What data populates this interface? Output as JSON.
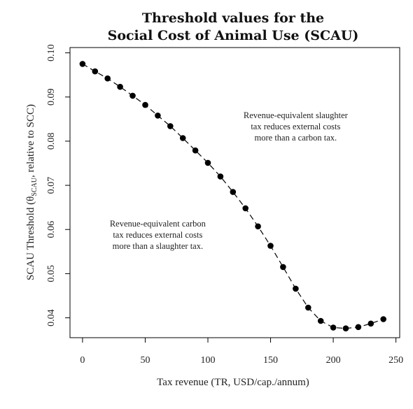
{
  "chart_data": {
    "type": "scatter",
    "title_line1": "Threshold values for the",
    "title_line2": "Social Cost of Animal Use (SCAU)",
    "xlabel": "Tax revenue (TR, USD/cap./annum)",
    "ylabel_prefix": "SCAU Threshold (θ",
    "ylabel_subscript": "SCAU",
    "ylabel_suffix": ", relative to SCC)",
    "xlim": [
      -10,
      253
    ],
    "ylim": [
      0.0355,
      0.1012
    ],
    "xticks": [
      0,
      50,
      100,
      150,
      200,
      250
    ],
    "xtick_labels": [
      "0",
      "50",
      "100",
      "150",
      "200",
      "250"
    ],
    "yticks": [
      0.04,
      0.05,
      0.06,
      0.07,
      0.08,
      0.09,
      0.1
    ],
    "ytick_labels": [
      "0.04",
      "0.05",
      "0.06",
      "0.07",
      "0.08",
      "0.09",
      "0.10"
    ],
    "series": [
      {
        "x": [
          0,
          10,
          20,
          30,
          40,
          50,
          60,
          70,
          80,
          90,
          100,
          110,
          120,
          130,
          140,
          150,
          160,
          170,
          180,
          190,
          200,
          210,
          220,
          230,
          240
        ],
        "y": [
          0.0975,
          0.0958,
          0.0942,
          0.0923,
          0.0903,
          0.0882,
          0.0858,
          0.0834,
          0.0807,
          0.0779,
          0.0751,
          0.072,
          0.0685,
          0.0648,
          0.0607,
          0.0563,
          0.0515,
          0.0466,
          0.0423,
          0.0393,
          0.0378,
          0.0376,
          0.0379,
          0.0387,
          0.0397
        ],
        "marker": "filled-circle",
        "connector": "dashed-line",
        "color": "#000000"
      }
    ],
    "annotations": [
      {
        "lines": [
          "Revenue-equivalent slaughter",
          "tax reduces external costs",
          "more than a carbon tax."
        ],
        "anchor_x": 170,
        "anchor_y": 0.0852
      },
      {
        "lines": [
          "Revenue-equivalent carbon",
          "tax reduces external costs",
          "more than a slaughter tax."
        ],
        "anchor_x": 60,
        "anchor_y": 0.0607
      }
    ],
    "grid": false,
    "box": true
  }
}
